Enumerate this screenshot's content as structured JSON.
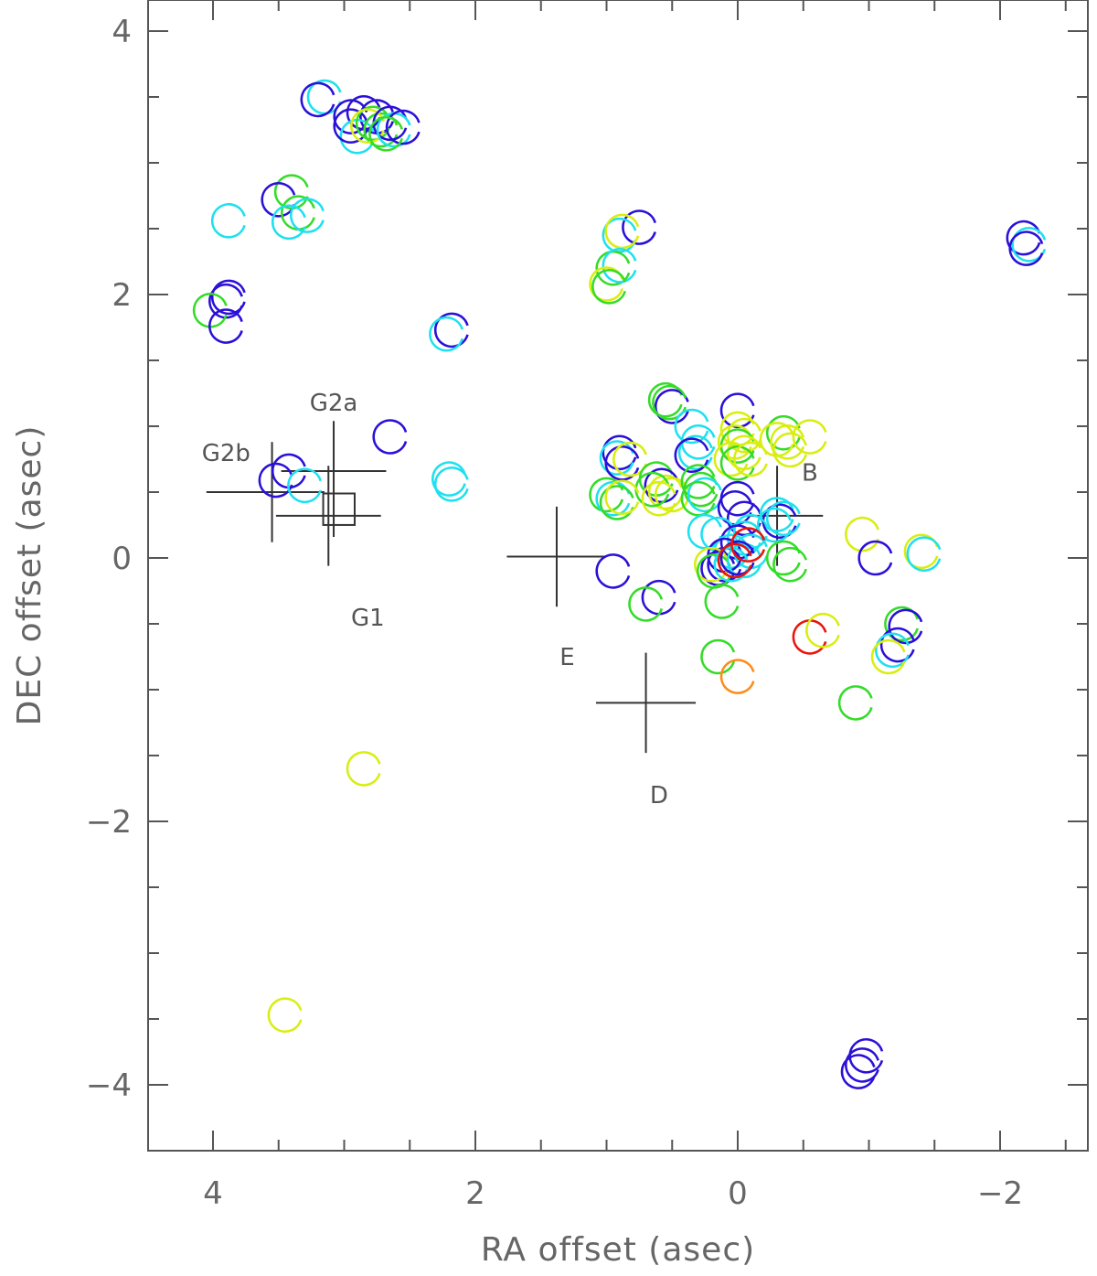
{
  "chart_data": {
    "type": "scatter",
    "xlabel": "RA offset (asec)",
    "ylabel": "DEC offset (asec)",
    "xlim": [
      4.5,
      -2.6
    ],
    "ylim": [
      -4.5,
      4.25
    ],
    "x_reversed": true,
    "x_ticks": [
      4,
      2,
      0,
      -2
    ],
    "x_tick_labels": [
      "4",
      "2",
      "0",
      "−2"
    ],
    "y_ticks": [
      -4,
      -2,
      0,
      2,
      4
    ],
    "y_tick_labels": [
      "−4",
      "−2",
      "0",
      "2",
      "4"
    ],
    "grid": false,
    "legend": "none",
    "colors": {
      "blue": "#2a10d8",
      "cyan": "#1ee0ee",
      "green": "#34dc28",
      "yellow": "#d8ee10",
      "orange": "#ff8c1a",
      "red": "#e8140c"
    },
    "points": [
      {
        "x": 3.15,
        "y": 3.5,
        "c": "cyan"
      },
      {
        "x": 3.2,
        "y": 3.48,
        "c": "blue"
      },
      {
        "x": 2.95,
        "y": 3.35,
        "c": "blue"
      },
      {
        "x": 2.85,
        "y": 3.38,
        "c": "blue"
      },
      {
        "x": 2.75,
        "y": 3.35,
        "c": "blue"
      },
      {
        "x": 2.9,
        "y": 3.2,
        "c": "cyan"
      },
      {
        "x": 2.95,
        "y": 3.28,
        "c": "blue"
      },
      {
        "x": 2.78,
        "y": 3.3,
        "c": "green"
      },
      {
        "x": 2.72,
        "y": 3.25,
        "c": "green"
      },
      {
        "x": 2.82,
        "y": 3.28,
        "c": "yellow"
      },
      {
        "x": 2.65,
        "y": 3.3,
        "c": "blue"
      },
      {
        "x": 2.62,
        "y": 3.25,
        "c": "cyan"
      },
      {
        "x": 2.55,
        "y": 3.27,
        "c": "blue"
      },
      {
        "x": 2.68,
        "y": 3.22,
        "c": "green"
      },
      {
        "x": 3.4,
        "y": 2.78,
        "c": "green"
      },
      {
        "x": 3.5,
        "y": 2.72,
        "c": "blue"
      },
      {
        "x": 3.35,
        "y": 2.62,
        "c": "green"
      },
      {
        "x": 3.28,
        "y": 2.6,
        "c": "cyan"
      },
      {
        "x": 3.42,
        "y": 2.55,
        "c": "cyan"
      },
      {
        "x": 3.88,
        "y": 2.56,
        "c": "cyan"
      },
      {
        "x": 3.88,
        "y": 1.98,
        "c": "blue"
      },
      {
        "x": 3.9,
        "y": 1.95,
        "c": "blue"
      },
      {
        "x": 4.02,
        "y": 1.88,
        "c": "green"
      },
      {
        "x": 3.9,
        "y": 1.76,
        "c": "blue"
      },
      {
        "x": 2.18,
        "y": 1.73,
        "c": "blue"
      },
      {
        "x": 2.22,
        "y": 1.7,
        "c": "cyan"
      },
      {
        "x": 0.75,
        "y": 2.51,
        "c": "blue"
      },
      {
        "x": 0.9,
        "y": 2.45,
        "c": "cyan"
      },
      {
        "x": 0.88,
        "y": 2.48,
        "c": "yellow"
      },
      {
        "x": 0.95,
        "y": 2.2,
        "c": "green"
      },
      {
        "x": 0.9,
        "y": 2.22,
        "c": "cyan"
      },
      {
        "x": 1.0,
        "y": 2.08,
        "c": "yellow"
      },
      {
        "x": 0.98,
        "y": 2.06,
        "c": "green"
      },
      {
        "x": -2.18,
        "y": 2.43,
        "c": "blue"
      },
      {
        "x": -2.22,
        "y": 2.38,
        "c": "cyan"
      },
      {
        "x": -2.2,
        "y": 2.35,
        "c": "blue"
      },
      {
        "x": 2.65,
        "y": 0.92,
        "c": "blue"
      },
      {
        "x": 2.2,
        "y": 0.6,
        "c": "cyan"
      },
      {
        "x": 2.18,
        "y": 0.56,
        "c": "cyan"
      },
      {
        "x": 3.42,
        "y": 0.66,
        "c": "blue"
      },
      {
        "x": 3.52,
        "y": 0.59,
        "c": "blue"
      },
      {
        "x": 3.3,
        "y": 0.55,
        "c": "cyan"
      },
      {
        "x": 0.55,
        "y": 1.2,
        "c": "green"
      },
      {
        "x": 0.5,
        "y": 1.15,
        "c": "blue"
      },
      {
        "x": 0.52,
        "y": 1.18,
        "c": "green"
      },
      {
        "x": 0.0,
        "y": 1.12,
        "c": "blue"
      },
      {
        "x": 0.35,
        "y": 1.0,
        "c": "cyan"
      },
      {
        "x": 0.3,
        "y": 0.88,
        "c": "cyan"
      },
      {
        "x": 0.32,
        "y": 0.8,
        "c": "cyan"
      },
      {
        "x": 0.35,
        "y": 0.78,
        "c": "blue"
      },
      {
        "x": 0.0,
        "y": 0.98,
        "c": "yellow"
      },
      {
        "x": -0.05,
        "y": 0.93,
        "c": "yellow"
      },
      {
        "x": 0.02,
        "y": 0.88,
        "c": "yellow"
      },
      {
        "x": 0.0,
        "y": 0.85,
        "c": "green"
      },
      {
        "x": -0.05,
        "y": 0.8,
        "c": "yellow"
      },
      {
        "x": 0.05,
        "y": 0.75,
        "c": "yellow"
      },
      {
        "x": 0.0,
        "y": 0.72,
        "c": "green"
      },
      {
        "x": -0.1,
        "y": 0.75,
        "c": "yellow"
      },
      {
        "x": -0.35,
        "y": 0.95,
        "c": "green"
      },
      {
        "x": -0.38,
        "y": 0.88,
        "c": "yellow"
      },
      {
        "x": -0.4,
        "y": 0.82,
        "c": "yellow"
      },
      {
        "x": -0.55,
        "y": 0.92,
        "c": "yellow"
      },
      {
        "x": -0.3,
        "y": 0.9,
        "c": "yellow"
      },
      {
        "x": 0.9,
        "y": 0.8,
        "c": "blue"
      },
      {
        "x": 0.92,
        "y": 0.76,
        "c": "cyan"
      },
      {
        "x": 0.88,
        "y": 0.72,
        "c": "blue"
      },
      {
        "x": 0.82,
        "y": 0.75,
        "c": "yellow"
      },
      {
        "x": 0.62,
        "y": 0.6,
        "c": "green"
      },
      {
        "x": 0.58,
        "y": 0.55,
        "c": "blue"
      },
      {
        "x": 0.55,
        "y": 0.5,
        "c": "yellow"
      },
      {
        "x": 0.5,
        "y": 0.48,
        "c": "yellow"
      },
      {
        "x": 0.65,
        "y": 0.52,
        "c": "green"
      },
      {
        "x": 0.6,
        "y": 0.45,
        "c": "yellow"
      },
      {
        "x": 1.0,
        "y": 0.48,
        "c": "green"
      },
      {
        "x": 0.95,
        "y": 0.45,
        "c": "cyan"
      },
      {
        "x": 0.92,
        "y": 0.42,
        "c": "green"
      },
      {
        "x": 0.88,
        "y": 0.46,
        "c": "yellow"
      },
      {
        "x": 0.3,
        "y": 0.58,
        "c": "green"
      },
      {
        "x": 0.28,
        "y": 0.52,
        "c": "green"
      },
      {
        "x": 0.25,
        "y": 0.48,
        "c": "cyan"
      },
      {
        "x": 0.3,
        "y": 0.45,
        "c": "green"
      },
      {
        "x": 0.0,
        "y": 0.45,
        "c": "blue"
      },
      {
        "x": 0.02,
        "y": 0.38,
        "c": "blue"
      },
      {
        "x": -0.05,
        "y": 0.3,
        "c": "blue"
      },
      {
        "x": -0.3,
        "y": 0.33,
        "c": "cyan"
      },
      {
        "x": -0.32,
        "y": 0.28,
        "c": "blue"
      },
      {
        "x": -0.28,
        "y": 0.25,
        "c": "cyan"
      },
      {
        "x": -0.35,
        "y": 0.3,
        "c": "cyan"
      },
      {
        "x": 0.25,
        "y": 0.2,
        "c": "cyan"
      },
      {
        "x": 0.15,
        "y": 0.18,
        "c": "cyan"
      },
      {
        "x": -0.05,
        "y": 0.15,
        "c": "cyan"
      },
      {
        "x": -0.1,
        "y": 0.2,
        "c": "cyan"
      },
      {
        "x": 0.0,
        "y": 0.12,
        "c": "blue"
      },
      {
        "x": 0.05,
        "y": 0.05,
        "c": "cyan"
      },
      {
        "x": -0.1,
        "y": 0.05,
        "c": "cyan"
      },
      {
        "x": 0.1,
        "y": 0.02,
        "c": "blue"
      },
      {
        "x": 0.1,
        "y": -0.05,
        "c": "blue"
      },
      {
        "x": 0.15,
        "y": -0.08,
        "c": "blue"
      },
      {
        "x": 0.2,
        "y": -0.05,
        "c": "yellow"
      },
      {
        "x": 0.18,
        "y": -0.1,
        "c": "green"
      },
      {
        "x": 0.05,
        "y": -0.05,
        "c": "cyan"
      },
      {
        "x": -0.05,
        "y": -0.02,
        "c": "cyan"
      },
      {
        "x": 0.0,
        "y": 0.0,
        "c": "blue"
      },
      {
        "x": 0.02,
        "y": -0.02,
        "c": "red"
      },
      {
        "x": -0.08,
        "y": 0.1,
        "c": "red"
      },
      {
        "x": -0.35,
        "y": 0.0,
        "c": "green"
      },
      {
        "x": -0.4,
        "y": -0.05,
        "c": "green"
      },
      {
        "x": 0.95,
        "y": -0.1,
        "c": "blue"
      },
      {
        "x": 0.6,
        "y": -0.3,
        "c": "blue"
      },
      {
        "x": 0.7,
        "y": -0.35,
        "c": "green"
      },
      {
        "x": 0.12,
        "y": -0.33,
        "c": "green"
      },
      {
        "x": 0.15,
        "y": -0.75,
        "c": "green"
      },
      {
        "x": 0.0,
        "y": -0.9,
        "c": "orange"
      },
      {
        "x": -0.55,
        "y": -0.6,
        "c": "red"
      },
      {
        "x": -0.65,
        "y": -0.55,
        "c": "yellow"
      },
      {
        "x": -0.95,
        "y": 0.18,
        "c": "yellow"
      },
      {
        "x": -1.05,
        "y": 0.0,
        "c": "blue"
      },
      {
        "x": -1.4,
        "y": 0.05,
        "c": "yellow"
      },
      {
        "x": -1.42,
        "y": 0.03,
        "c": "cyan"
      },
      {
        "x": -1.25,
        "y": -0.5,
        "c": "green"
      },
      {
        "x": -1.28,
        "y": -0.52,
        "c": "blue"
      },
      {
        "x": -1.22,
        "y": -0.66,
        "c": "blue"
      },
      {
        "x": -1.18,
        "y": -0.7,
        "c": "cyan"
      },
      {
        "x": -1.15,
        "y": -0.75,
        "c": "yellow"
      },
      {
        "x": -0.9,
        "y": -1.1,
        "c": "green"
      },
      {
        "x": 2.85,
        "y": -1.6,
        "c": "yellow"
      },
      {
        "x": 3.45,
        "y": -3.47,
        "c": "yellow"
      },
      {
        "x": -0.98,
        "y": -3.78,
        "c": "blue"
      },
      {
        "x": -0.95,
        "y": -3.85,
        "c": "blue"
      },
      {
        "x": -0.92,
        "y": -3.9,
        "c": "blue"
      }
    ],
    "crosses": [
      {
        "name": "G2b",
        "x": 3.55,
        "y": 0.5,
        "dx_left": 0.5,
        "dx_right": 0.4,
        "dy_up": 0.38,
        "dy_down": 0.38
      },
      {
        "name": "G2a",
        "x": 3.08,
        "y": 0.66,
        "dx_left": 0.4,
        "dx_right": 0.4,
        "dy_up": 0.38,
        "dy_down": 0.5
      },
      {
        "name": "G1",
        "x": 3.12,
        "y": 0.32,
        "dx_left": 0.4,
        "dx_right": 0.4,
        "dy_up": 0.38,
        "dy_down": 0.38
      },
      {
        "name": "E",
        "x": 1.38,
        "y": 0.01,
        "dx_left": 0.38,
        "dx_right": 0.38,
        "dy_up": 0.38,
        "dy_down": 0.38
      },
      {
        "name": "D",
        "x": 0.7,
        "y": -1.1,
        "dx_left": 0.38,
        "dx_right": 0.38,
        "dy_up": 0.38,
        "dy_down": 0.38
      },
      {
        "name": "B",
        "x": -0.3,
        "y": 0.32,
        "dx_left": 0.2,
        "dx_right": 0.35,
        "dy_up": 0.38,
        "dy_down": 0.38
      }
    ],
    "box": {
      "x": 3.04,
      "y": 0.37,
      "half_width": 0.12
    },
    "annotations": [
      {
        "text": "G2b",
        "x": 3.9,
        "y": 0.8
      },
      {
        "text": "G2a",
        "x": 3.08,
        "y": 1.18
      },
      {
        "text": "G1",
        "x": 2.82,
        "y": -0.45
      },
      {
        "text": "E",
        "x": 1.3,
        "y": -0.75
      },
      {
        "text": "D",
        "x": 0.6,
        "y": -1.8
      },
      {
        "text": "B",
        "x": -0.55,
        "y": 0.65
      }
    ]
  }
}
